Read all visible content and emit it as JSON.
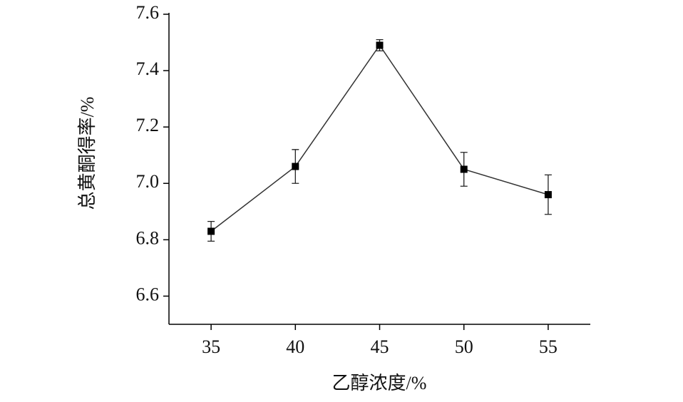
{
  "chart_data": {
    "type": "line",
    "xlabel": "乙醇浓度/%",
    "ylabel": "总黄酮得率/%",
    "x": [
      35,
      40,
      45,
      50,
      55
    ],
    "values": [
      6.83,
      7.06,
      7.49,
      7.05,
      6.96
    ],
    "errors": [
      0.035,
      0.06,
      0.02,
      0.06,
      0.07
    ],
    "color": "#333333",
    "xlim": [
      32.5,
      57.5
    ],
    "xticks": [
      35,
      40,
      45,
      50,
      55
    ],
    "ylim": [
      6.5,
      7.6
    ],
    "yticks": [
      6.6,
      6.8,
      {
        "value": 7,
        "label": "7.0"
      },
      7.2,
      7.4,
      7.6
    ]
  }
}
